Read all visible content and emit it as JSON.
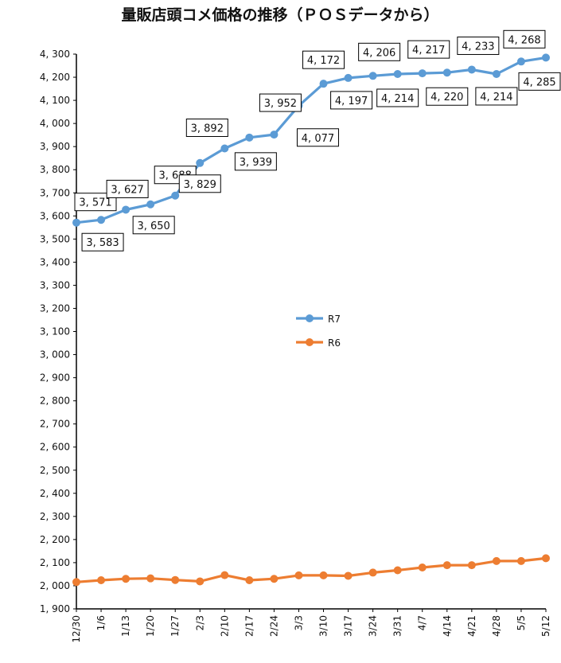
{
  "chart_data": {
    "type": "line",
    "title": "量販店頭コメ価格の推移（ＰＯＳデータから）",
    "categories": [
      "12/30",
      "1/6",
      "1/13",
      "1/20",
      "1/27",
      "2/3",
      "2/10",
      "2/17",
      "2/24",
      "3/3",
      "3/10",
      "3/17",
      "3/24",
      "3/31",
      "4/7",
      "4/14",
      "4/21",
      "4/28",
      "5/5",
      "5/12"
    ],
    "ylim": [
      1900,
      4300
    ],
    "ytick_step": 100,
    "ytick_labels": [
      "1, 900",
      "2, 000",
      "2, 100",
      "2, 200",
      "2, 300",
      "2, 400",
      "2, 500",
      "2, 600",
      "2, 700",
      "2, 800",
      "2, 900",
      "3, 000",
      "3, 100",
      "3, 200",
      "3, 300",
      "3, 400",
      "3, 500",
      "3, 600",
      "3, 700",
      "3, 800",
      "3, 900",
      "4, 000",
      "4, 100",
      "4, 200",
      "4, 300"
    ],
    "grid": false,
    "legend_position": "center",
    "series": [
      {
        "name": "R7",
        "color": "#5B9BD5",
        "values": [
          3571,
          3583,
          3627,
          3650,
          3688,
          3829,
          3892,
          3939,
          3952,
          4077,
          4172,
          4197,
          4206,
          4214,
          4217,
          4220,
          4233,
          4214,
          4268,
          4285
        ],
        "labels": [
          "3, 571",
          "3, 583",
          "3, 627",
          "3, 650",
          "3, 688",
          "3, 829",
          "3, 892",
          "3, 939",
          "3, 952",
          "4, 077",
          "4, 172",
          "4, 197",
          "4, 206",
          "4, 214",
          "4, 217",
          "4, 220",
          "4, 233",
          "4, 214",
          "4, 268",
          "4, 285"
        ]
      },
      {
        "name": "R6",
        "color": "#ED7D31",
        "values": [
          2016,
          2024,
          2030,
          2032,
          2025,
          2019,
          2046,
          2024,
          2030,
          2045,
          2045,
          2043,
          2057,
          2067,
          2079,
          2089,
          2089,
          2107,
          2107,
          2119
        ]
      }
    ]
  }
}
